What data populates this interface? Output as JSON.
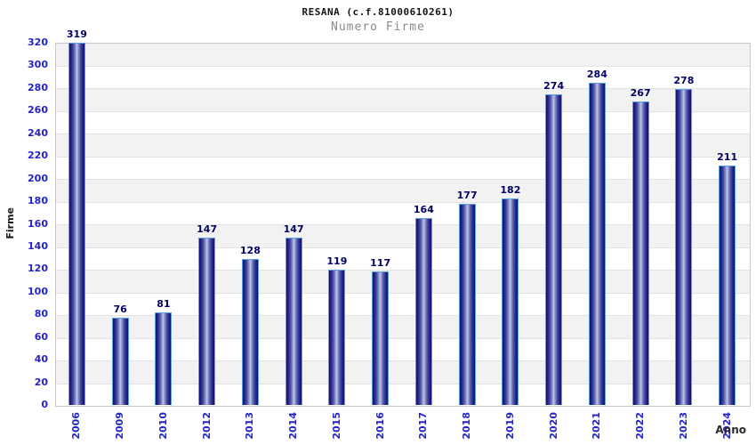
{
  "header": {
    "title": "RESANA (c.f.81000610261)",
    "subtitle": "Numero Firme"
  },
  "axes": {
    "x_title": "Anno",
    "y_title": "Firme"
  },
  "chart_data": {
    "type": "bar",
    "title": "RESANA (c.f.81000610261)",
    "subtitle": "Numero Firme",
    "xlabel": "Anno",
    "ylabel": "Firme",
    "categories": [
      "2006",
      "2009",
      "2010",
      "2012",
      "2013",
      "2014",
      "2015",
      "2016",
      "2017",
      "2018",
      "2019",
      "2020",
      "2021",
      "2022",
      "2023",
      "2024"
    ],
    "values": [
      319,
      76,
      81,
      147,
      128,
      147,
      119,
      117,
      164,
      177,
      182,
      274,
      284,
      267,
      278,
      211
    ],
    "value_labels_shown": true,
    "ylim": [
      0,
      320
    ],
    "ytick_step": 20,
    "yticks": [
      0,
      20,
      40,
      60,
      80,
      100,
      120,
      140,
      160,
      180,
      200,
      220,
      240,
      260,
      280,
      300,
      320
    ],
    "grid": "horizontal alternating bands",
    "legend": "none",
    "colors": {
      "bar_gradient_edge": "#12126f",
      "bar_gradient_center": "#bfc8f0",
      "bar_border": "#58a0e2",
      "value_label": "#000066",
      "tick_label": "#2323cc",
      "band_gray": "#f2f2f2",
      "band_white": "#ffffff",
      "gridline": "#e2e2e2",
      "plot_border": "#c9c9c9",
      "title": "#141414",
      "subtitle": "#8a8a8a",
      "axis_title": "#1c1c1c"
    }
  }
}
